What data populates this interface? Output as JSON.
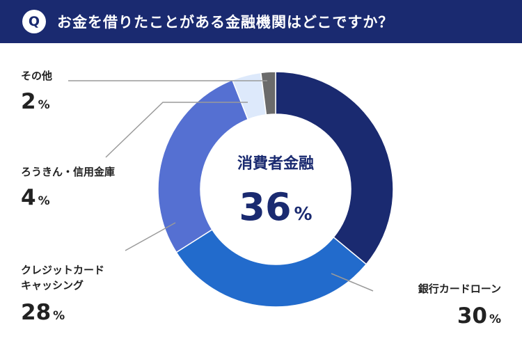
{
  "header": {
    "badge": "Q",
    "title": "お金を借りたことがある金融機関はどこですか？"
  },
  "chart_data": {
    "type": "pie",
    "unit": "%",
    "slices": [
      {
        "label": "消費者金融",
        "value": 36,
        "color": "#1a2a70"
      },
      {
        "label": "銀行カードローン",
        "value": 30,
        "color": "#226bcc"
      },
      {
        "label": "クレジットカード キャッシング",
        "value": 28,
        "color": "#5570d2"
      },
      {
        "label": "ろうきん・信用金庫",
        "value": 4,
        "color": "#dde9fb"
      },
      {
        "label": "その他",
        "value": 2,
        "color": "#6b6b6b"
      }
    ],
    "highlight": {
      "label": "消費者金融",
      "value": "36",
      "unit": "%"
    }
  },
  "labels": {
    "sonota": {
      "name": "その他",
      "value": "2",
      "unit": "%"
    },
    "roukin": {
      "name": "ろうきん・信用金庫",
      "value": "4",
      "unit": "%"
    },
    "credit": {
      "name_line1": "クレジットカード",
      "name_line2": "キャッシング",
      "value": "28",
      "unit": "%"
    },
    "bank": {
      "name": "銀行カードローン",
      "value": "30",
      "unit": "%"
    }
  }
}
